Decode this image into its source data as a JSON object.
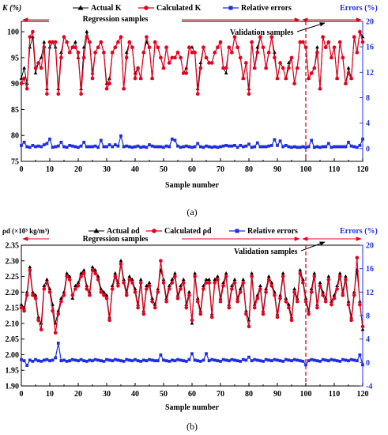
{
  "figure": {
    "colors": {
      "actual": "#000000",
      "calculated": "#e8001c",
      "errors": "#1f2fe0",
      "divider": "#e8001c",
      "right_axis": "#1f2fe0"
    },
    "panels": [
      {
        "caption": "(a)",
        "left_axis_title": "K (%)",
        "right_axis_title": "Errors (%)",
        "xlabel": "Sample number",
        "legend": [
          "Actual K",
          "Calculated K",
          "Relative errors"
        ],
        "regression_label": "Regression samples",
        "validation_label": "Validation samples",
        "left_ticks": [
          "75",
          "80",
          "85",
          "90",
          "95",
          "100"
        ],
        "right_ticks": [
          "0",
          "4",
          "8",
          "12",
          "16",
          "20"
        ],
        "x_ticks": [
          "0",
          "10",
          "20",
          "30",
          "40",
          "50",
          "60",
          "70",
          "80",
          "90",
          "100",
          "110",
          "120"
        ]
      },
      {
        "caption": "(b)",
        "left_axis_title": "ρd (×10³ kg/m³)",
        "right_axis_title": "Errors (%)",
        "xlabel": "Sample number",
        "legend": [
          "Actual ρd",
          "Calculated ρd",
          "Relative errors"
        ],
        "regression_label": "Regression samples",
        "validation_label": "Validation samples",
        "left_ticks": [
          "1.90",
          "1.95",
          "2.00",
          "2.05",
          "2.10",
          "2.15",
          "2.20",
          "2.25",
          "2.30",
          "2.35"
        ],
        "right_ticks": [
          "-4",
          "0",
          "4",
          "8",
          "12",
          "16",
          "20"
        ],
        "x_ticks": [
          "0",
          "10",
          "20",
          "30",
          "40",
          "50",
          "60",
          "70",
          "80",
          "90",
          "100",
          "110",
          "120"
        ]
      }
    ]
  },
  "chart_data": [
    {
      "type": "line",
      "xlabel": "Sample number",
      "ylabel": "K (%)",
      "y2label": "Errors (%)",
      "xlim": [
        0,
        120
      ],
      "ylim": [
        75,
        102
      ],
      "y2lim": [
        -2,
        20
      ],
      "divider_x": 100,
      "series": [
        {
          "name": "Actual K",
          "axis": "left",
          "marker": "triangle",
          "values": [
            91,
            93,
            90,
            97,
            99,
            92,
            94,
            95,
            98,
            89,
            97,
            98,
            97,
            89,
            96,
            99,
            98,
            96,
            97,
            98,
            95,
            89,
            97,
            100,
            98,
            92,
            96,
            97,
            98,
            96,
            90,
            91,
            96,
            97,
            98,
            99,
            89,
            96,
            98,
            97,
            92,
            93,
            91,
            96,
            98,
            97,
            91,
            98,
            97,
            95,
            93,
            97,
            94,
            95,
            95,
            96,
            95,
            92,
            93,
            97,
            97,
            96,
            89,
            94,
            97,
            95,
            94,
            94,
            96,
            97,
            98,
            93,
            92,
            97,
            96,
            99,
            97,
            95,
            91,
            94,
            89,
            98,
            93,
            97,
            99,
            97,
            93,
            96,
            99,
            96,
            91,
            94,
            93,
            91,
            94,
            95,
            90,
            93,
            98,
            98,
            97,
            91,
            92,
            93,
            97,
            89,
            99,
            97,
            98,
            95,
            97,
            91,
            98,
            95,
            90,
            93,
            91,
            99,
            96,
            100,
            99
          ]
        },
        {
          "name": "Calculated K",
          "axis": "left",
          "marker": "circle",
          "values": [
            90,
            91,
            89,
            99,
            100,
            93,
            94,
            93,
            97,
            88,
            98,
            98,
            98,
            88,
            95,
            99,
            98,
            96,
            97,
            97,
            96,
            88,
            95,
            99,
            98,
            91,
            96,
            97,
            98,
            96,
            89,
            90,
            96,
            97,
            98,
            99,
            89,
            95,
            98,
            97,
            91,
            93,
            91,
            96,
            99,
            97,
            91,
            98,
            97,
            95,
            93,
            97,
            94,
            95,
            95,
            96,
            95,
            92,
            92,
            97,
            96,
            96,
            88,
            93,
            97,
            95,
            94,
            94,
            96,
            97,
            98,
            93,
            93,
            97,
            96,
            99,
            97,
            95,
            91,
            94,
            88,
            98,
            93,
            96,
            99,
            97,
            93,
            96,
            99,
            95,
            91,
            94,
            93,
            91,
            93,
            95,
            90,
            93,
            98,
            98,
            97,
            91,
            92,
            93,
            96,
            89,
            99,
            97,
            98,
            95,
            97,
            91,
            98,
            95,
            90,
            92,
            91,
            99,
            96,
            100,
            98
          ]
        },
        {
          "name": "Relative errors",
          "axis": "right",
          "marker": "square",
          "values": [
            0.5,
            1.0,
            0.3,
            0.2,
            0.5,
            0.3,
            0.4,
            0.3,
            0.6,
            0.8,
            1.5,
            0.2,
            0.3,
            0.4,
            1.0,
            0.3,
            0.2,
            0.5,
            0.4,
            0.3,
            0.2,
            0.4,
            1.0,
            0.3,
            0.3,
            0.3,
            0.4,
            0.2,
            1.3,
            0.3,
            0.3,
            0.6,
            0.3,
            0.6,
            0.4,
            2.0,
            0.3,
            0.4,
            0.3,
            0.2,
            0.3,
            0.4,
            0.2,
            0.3,
            0.2,
            0.6,
            0.4,
            0.3,
            0.3,
            0.3,
            0.2,
            0.4,
            0.3,
            1.5,
            1.3,
            0.4,
            0.2,
            0.3,
            0.4,
            0.3,
            0.2,
            0.3,
            0.8,
            0.3,
            0.2,
            0.4,
            0.3,
            0.2,
            0.3,
            0.2,
            0.3,
            0.4,
            0.5,
            0.4,
            0.4,
            0.5,
            0.2,
            0.5,
            0.3,
            0.4,
            0.7,
            0.2,
            0.3,
            0.9,
            0.3,
            0.3,
            0.3,
            0.4,
            0.5,
            1.4,
            0.5,
            1.2,
            0.3,
            0.5,
            0.3,
            0.2,
            0.3,
            0.2,
            0.2,
            0.3,
            0.2,
            0.3,
            1.3,
            0.2,
            0.3,
            0.2,
            0.3,
            0.3,
            0.8,
            0.2,
            0.3,
            0.3,
            0.3,
            0.3,
            0.3,
            1.0,
            0.4,
            0.3,
            0.2,
            0.5,
            1.5
          ]
        }
      ]
    },
    {
      "type": "line",
      "xlabel": "Sample number",
      "ylabel": "ρd (×10³ kg/m³)",
      "y2label": "Errors (%)",
      "xlim": [
        0,
        120
      ],
      "ylim": [
        1.9,
        2.35
      ],
      "y2lim": [
        -4,
        20
      ],
      "divider_x": 100,
      "series": [
        {
          "name": "Actual ρd",
          "axis": "left",
          "marker": "triangle",
          "values": [
            2.16,
            2.15,
            2.2,
            2.28,
            2.2,
            2.19,
            2.12,
            2.1,
            2.22,
            2.24,
            2.21,
            2.16,
            2.1,
            2.14,
            2.18,
            2.2,
            2.26,
            2.25,
            2.18,
            2.22,
            2.23,
            2.26,
            2.27,
            2.22,
            2.2,
            2.28,
            2.27,
            2.25,
            2.21,
            2.2,
            2.19,
            2.12,
            2.22,
            2.26,
            2.23,
            2.3,
            2.24,
            2.2,
            2.25,
            2.24,
            2.21,
            2.16,
            2.24,
            2.14,
            2.22,
            2.23,
            2.18,
            2.16,
            2.21,
            2.27,
            2.24,
            2.18,
            2.22,
            2.24,
            2.26,
            2.19,
            2.22,
            2.24,
            2.16,
            2.2,
            2.1,
            2.26,
            2.18,
            2.14,
            2.22,
            2.24,
            2.24,
            2.13,
            2.24,
            2.25,
            2.18,
            2.23,
            2.26,
            2.16,
            2.22,
            2.24,
            2.18,
            2.21,
            2.24,
            2.14,
            2.11,
            2.26,
            2.16,
            2.19,
            2.22,
            2.14,
            2.21,
            2.25,
            2.23,
            2.2,
            2.13,
            2.19,
            2.26,
            2.18,
            2.16,
            2.12,
            2.21,
            2.18,
            2.27,
            2.24,
            2.18,
            2.14,
            2.21,
            2.26,
            2.16,
            2.23,
            2.2,
            2.18,
            2.25,
            2.17,
            2.19,
            2.22,
            2.26,
            2.2,
            2.25,
            2.17,
            2.12,
            2.2,
            2.27,
            2.17,
            2.08
          ]
        },
        {
          "name": "Calculated ρd",
          "axis": "left",
          "marker": "circle",
          "values": [
            2.15,
            2.14,
            2.19,
            2.27,
            2.19,
            2.18,
            2.11,
            2.08,
            2.21,
            2.23,
            2.2,
            2.14,
            2.07,
            2.13,
            2.17,
            2.19,
            2.25,
            2.24,
            2.19,
            2.21,
            2.22,
            2.25,
            2.26,
            2.21,
            2.19,
            2.27,
            2.26,
            2.24,
            2.2,
            2.19,
            2.18,
            2.11,
            2.21,
            2.25,
            2.22,
            2.29,
            2.23,
            2.19,
            2.24,
            2.23,
            2.2,
            2.15,
            2.23,
            2.13,
            2.21,
            2.22,
            2.17,
            2.15,
            2.2,
            2.3,
            2.23,
            2.17,
            2.21,
            2.23,
            2.25,
            2.18,
            2.21,
            2.23,
            2.15,
            2.19,
            2.11,
            2.25,
            2.17,
            2.13,
            2.21,
            2.23,
            2.23,
            2.12,
            2.23,
            2.24,
            2.17,
            2.22,
            2.25,
            2.15,
            2.21,
            2.23,
            2.17,
            2.2,
            2.23,
            2.13,
            2.09,
            2.25,
            2.15,
            2.18,
            2.21,
            2.13,
            2.2,
            2.24,
            2.22,
            2.19,
            2.12,
            2.18,
            2.25,
            2.17,
            2.15,
            2.11,
            2.2,
            2.17,
            2.26,
            2.23,
            2.17,
            2.13,
            2.2,
            2.25,
            2.15,
            2.22,
            2.19,
            2.17,
            2.24,
            2.16,
            2.18,
            2.21,
            2.25,
            2.19,
            2.24,
            2.16,
            2.11,
            2.19,
            2.31,
            2.16,
            2.09
          ]
        },
        {
          "name": "Relative errors",
          "axis": "right",
          "marker": "square",
          "values": [
            0.5,
            0.3,
            -0.5,
            0.4,
            0.2,
            0.5,
            0.3,
            0.2,
            0.4,
            0.5,
            0.3,
            0.4,
            0.8,
            3.3,
            0.3,
            0.4,
            0.2,
            0.3,
            0.5,
            0.4,
            0.3,
            0.5,
            0.3,
            0.2,
            0.4,
            0.3,
            0.5,
            0.4,
            0.3,
            0.2,
            0.5,
            0.4,
            0.3,
            0.5,
            0.4,
            0.3,
            0.2,
            0.5,
            0.4,
            0.3,
            0.5,
            0.3,
            0.2,
            0.4,
            0.3,
            0.5,
            0.4,
            0.3,
            0.3,
            1.3,
            0.4,
            0.3,
            0.2,
            0.4,
            0.3,
            0.5,
            0.4,
            0.3,
            0.2,
            0.5,
            1.5,
            0.4,
            0.3,
            0.2,
            0.4,
            1.5,
            0.3,
            0.5,
            0.4,
            0.3,
            0.2,
            0.5,
            0.4,
            0.3,
            0.5,
            0.4,
            0.3,
            0.2,
            0.5,
            0.4,
            0.9,
            0.3,
            0.5,
            0.4,
            0.3,
            0.2,
            0.5,
            0.4,
            0.3,
            0.5,
            0.4,
            0.3,
            0.2,
            0.5,
            0.4,
            0.3,
            0.5,
            0.4,
            0.3,
            0.2,
            -0.4,
            0.3,
            0.5,
            0.4,
            0.3,
            0.2,
            0.5,
            0.4,
            0.3,
            0.5,
            0.4,
            0.3,
            0.2,
            0.5,
            0.4,
            0.3,
            0.5,
            0.4,
            0.3,
            1.3,
            -0.4
          ]
        }
      ]
    }
  ]
}
